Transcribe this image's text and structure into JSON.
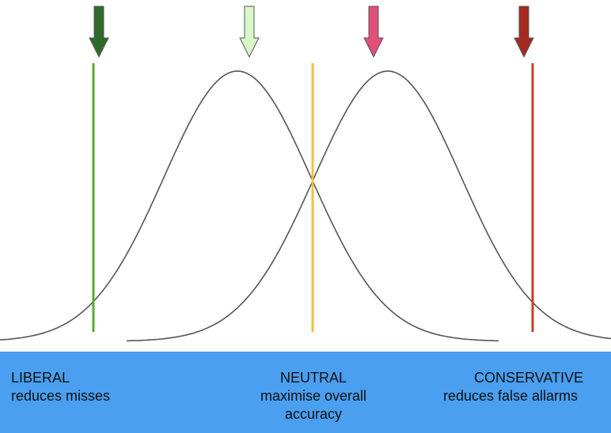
{
  "labels": [
    {
      "title": "LIBERAL",
      "lines": [
        "reduces misses"
      ]
    },
    {
      "title": "NEUTRAL",
      "lines": [
        "maximise overall",
        "accuracy"
      ]
    },
    {
      "title": "CONSERVATIVE",
      "lines": [
        "reduces false allarms"
      ]
    }
  ]
}
